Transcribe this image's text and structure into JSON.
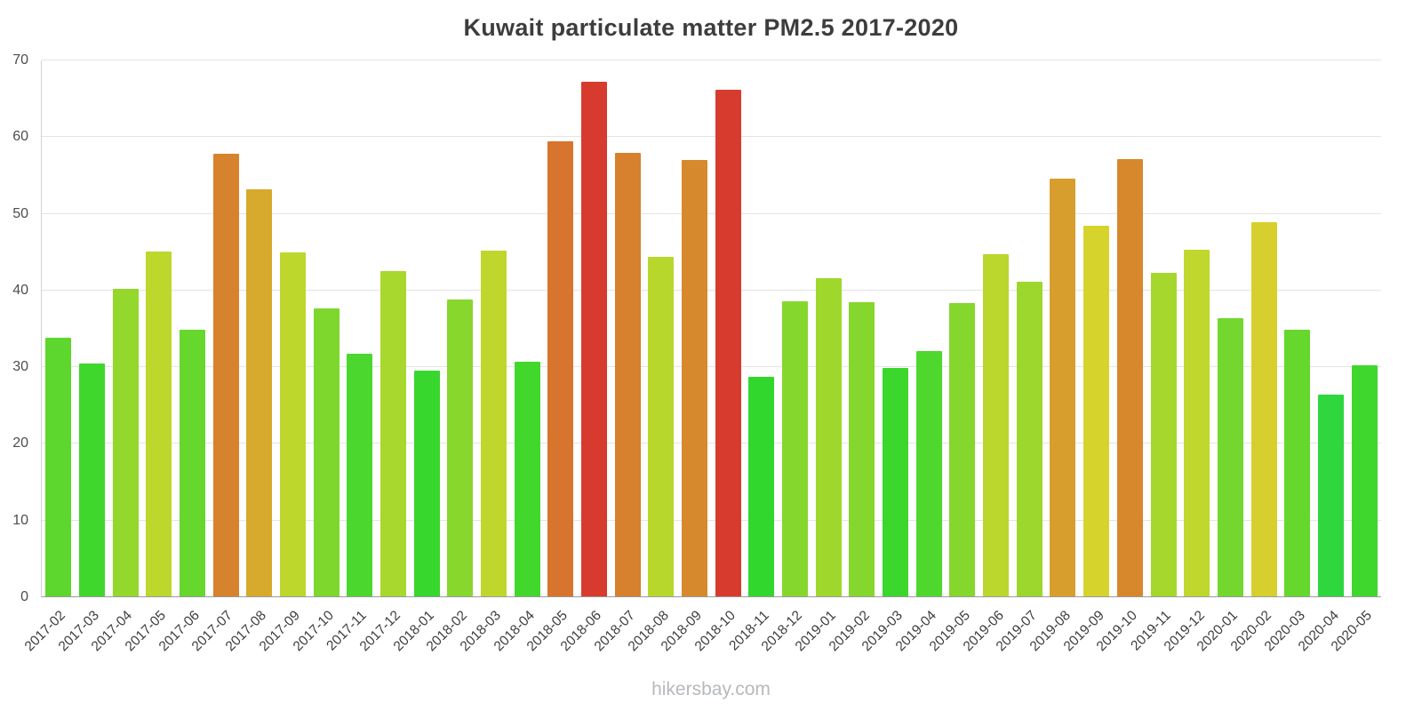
{
  "chart_data": {
    "type": "bar",
    "title": "Kuwait particulate matter PM2.5 2017-2020",
    "watermark": "hikersbay.com",
    "xlabel": "",
    "ylabel": "",
    "ylim": [
      0,
      70
    ],
    "y_ticks": [
      0,
      10,
      20,
      30,
      40,
      50,
      60,
      70
    ],
    "grid": true,
    "legend": "none",
    "x_tick_rotation": -45,
    "categories": [
      "2017-02",
      "2017-03",
      "2017-04",
      "2017-05",
      "2017-06",
      "2017-07",
      "2017-08",
      "2017-09",
      "2017-10",
      "2017-11",
      "2017-12",
      "2018-01",
      "2018-02",
      "2018-03",
      "2018-04",
      "2018-05",
      "2018-06",
      "2018-07",
      "2018-08",
      "2018-09",
      "2018-10",
      "2018-11",
      "2018-12",
      "2019-01",
      "2019-02",
      "2019-03",
      "2019-04",
      "2019-05",
      "2019-06",
      "2019-07",
      "2019-08",
      "2019-09",
      "2019-10",
      "2019-11",
      "2019-12",
      "2020-01",
      "2020-02",
      "2020-03",
      "2020-04",
      "2020-05"
    ],
    "values": [
      33.8,
      30.5,
      40.2,
      45.1,
      34.9,
      57.8,
      53.2,
      45.0,
      37.7,
      31.7,
      42.5,
      29.5,
      38.8,
      45.2,
      30.7,
      59.4,
      67.2,
      58.0,
      44.4,
      57.0,
      66.2,
      28.7,
      38.6,
      41.6,
      38.5,
      29.9,
      32.1,
      38.4,
      44.7,
      41.2,
      54.6,
      48.4,
      57.1,
      42.3,
      45.3,
      36.4,
      48.9,
      34.9,
      26.4,
      30.3
    ],
    "color_scale": {
      "type": "value-gradient-green-yellow-orange-red",
      "domain": [
        25,
        66
      ],
      "hue_range": [
        130,
        5
      ],
      "saturation": "68%",
      "lightness": "51%",
      "sample_colors": {
        "green": "#2fd24b",
        "lime": "#8ed32c",
        "yellow": "#d8db2f",
        "orange": "#dd9a2e",
        "red": "#e0402b"
      },
      "gridline_color": "#e4e4e4",
      "axis_color": "#9a9a9a"
    }
  }
}
